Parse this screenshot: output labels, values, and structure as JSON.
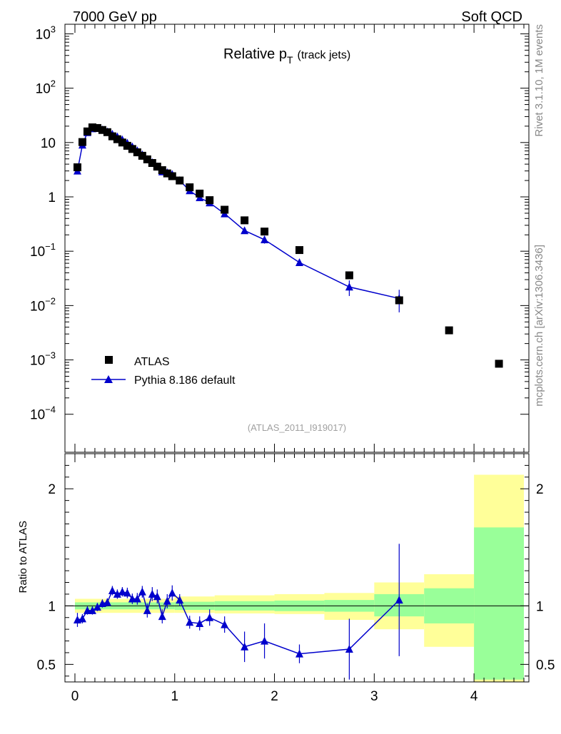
{
  "header": {
    "left": "7000 GeV pp",
    "right": "Soft QCD"
  },
  "side_labels": {
    "top": "Rivet 3.1.10,  1M events",
    "bottom": "mcplots.cern.ch [arXiv:1306.3436]"
  },
  "chart_data": [
    {
      "type": "scatter",
      "panel": "main",
      "title": "Relative p",
      "title_sub": "T",
      "title_suffix": "(track jets)",
      "watermark": "(ATLAS_2011_I919017)",
      "xlabel": "",
      "ylabel": "",
      "yscale": "log",
      "xlim": [
        -0.1,
        4.55
      ],
      "ylim": [
        2e-05,
        1500
      ],
      "y_ticks": [
        {
          "value": 1000,
          "base": "10",
          "exp": "3"
        },
        {
          "value": 100,
          "base": "10",
          "exp": "2"
        },
        {
          "value": 10,
          "base": "10",
          "exp": ""
        },
        {
          "value": 1,
          "base": "1",
          "exp": ""
        },
        {
          "value": 0.1,
          "base": "10",
          "exp": "−1"
        },
        {
          "value": 0.01,
          "base": "10",
          "exp": "−2"
        },
        {
          "value": 0.001,
          "base": "10",
          "exp": "−3"
        },
        {
          "value": 0.0001,
          "base": "10",
          "exp": "−4"
        }
      ],
      "legend": [
        {
          "name": "ATLAS",
          "marker": "square",
          "color": "#000000"
        },
        {
          "name": "Pythia 8.186 default",
          "marker": "triangle",
          "color": "#0000cc"
        }
      ],
      "series": [
        {
          "name": "ATLAS",
          "color": "#000000",
          "points": [
            {
              "x": 0.025,
              "y": 3.5
            },
            {
              "x": 0.075,
              "y": 10.2
            },
            {
              "x": 0.125,
              "y": 16.0
            },
            {
              "x": 0.175,
              "y": 19.0
            },
            {
              "x": 0.225,
              "y": 18.5
            },
            {
              "x": 0.275,
              "y": 17.0
            },
            {
              "x": 0.325,
              "y": 15.5
            },
            {
              "x": 0.375,
              "y": 13.0
            },
            {
              "x": 0.425,
              "y": 11.5
            },
            {
              "x": 0.475,
              "y": 10.0
            },
            {
              "x": 0.525,
              "y": 8.7
            },
            {
              "x": 0.575,
              "y": 7.6
            },
            {
              "x": 0.625,
              "y": 6.6
            },
            {
              "x": 0.675,
              "y": 5.7
            },
            {
              "x": 0.725,
              "y": 4.9
            },
            {
              "x": 0.775,
              "y": 4.2
            },
            {
              "x": 0.825,
              "y": 3.6
            },
            {
              "x": 0.875,
              "y": 3.1
            },
            {
              "x": 0.925,
              "y": 2.7
            },
            {
              "x": 0.975,
              "y": 2.4
            },
            {
              "x": 1.05,
              "y": 2.0
            },
            {
              "x": 1.15,
              "y": 1.5
            },
            {
              "x": 1.25,
              "y": 1.15
            },
            {
              "x": 1.35,
              "y": 0.87
            },
            {
              "x": 1.5,
              "y": 0.58
            },
            {
              "x": 1.7,
              "y": 0.37
            },
            {
              "x": 1.9,
              "y": 0.23
            },
            {
              "x": 2.25,
              "y": 0.105
            },
            {
              "x": 2.75,
              "y": 0.036
            },
            {
              "x": 3.25,
              "y": 0.0125
            },
            {
              "x": 3.75,
              "y": 0.0035
            },
            {
              "x": 4.25,
              "y": 0.00085
            }
          ]
        },
        {
          "name": "Pythia 8.186 default",
          "color": "#0000cc",
          "points": [
            {
              "x": 0.025,
              "y": 3.0,
              "err": 0.25
            },
            {
              "x": 0.075,
              "y": 9.0,
              "err": 0.5
            },
            {
              "x": 0.125,
              "y": 15.3,
              "err": 0.7
            },
            {
              "x": 0.175,
              "y": 18.0,
              "err": 0.8
            },
            {
              "x": 0.225,
              "y": 18.2,
              "err": 0.8
            },
            {
              "x": 0.275,
              "y": 17.2,
              "err": 0.8
            },
            {
              "x": 0.325,
              "y": 15.8,
              "err": 0.7
            },
            {
              "x": 0.375,
              "y": 14.3,
              "err": 0.6
            },
            {
              "x": 0.425,
              "y": 12.8,
              "err": 0.5
            },
            {
              "x": 0.475,
              "y": 11.3,
              "err": 0.5
            },
            {
              "x": 0.525,
              "y": 9.8,
              "err": 0.4
            },
            {
              "x": 0.575,
              "y": 8.4,
              "err": 0.4
            },
            {
              "x": 0.625,
              "y": 7.1,
              "err": 0.3
            },
            {
              "x": 0.675,
              "y": 6.0,
              "err": 0.3
            },
            {
              "x": 0.725,
              "y": 4.9,
              "err": 0.25
            },
            {
              "x": 0.775,
              "y": 4.3,
              "err": 0.2
            },
            {
              "x": 0.825,
              "y": 3.6,
              "err": 0.2
            },
            {
              "x": 0.875,
              "y": 2.9,
              "err": 0.15
            },
            {
              "x": 0.925,
              "y": 2.8,
              "err": 0.15
            },
            {
              "x": 0.975,
              "y": 2.6,
              "err": 0.15
            },
            {
              "x": 1.05,
              "y": 2.0,
              "err": 0.1
            },
            {
              "x": 1.15,
              "y": 1.3,
              "err": 0.08
            },
            {
              "x": 1.25,
              "y": 0.97,
              "err": 0.06
            },
            {
              "x": 1.35,
              "y": 0.78,
              "err": 0.05
            },
            {
              "x": 1.5,
              "y": 0.49,
              "err": 0.04
            },
            {
              "x": 1.7,
              "y": 0.24,
              "err": 0.025
            },
            {
              "x": 1.9,
              "y": 0.163,
              "err": 0.025
            },
            {
              "x": 2.25,
              "y": 0.062,
              "err": 0.008
            },
            {
              "x": 2.75,
              "y": 0.022,
              "err": 0.007
            },
            {
              "x": 3.25,
              "y": 0.0135,
              "err": 0.006
            }
          ]
        }
      ]
    },
    {
      "type": "scatter",
      "panel": "ratio",
      "ylabel": "Ratio to ATLAS",
      "yscale": "linear",
      "xlim": [
        -0.1,
        4.55
      ],
      "ylim": [
        0.35,
        2.3
      ],
      "x_ticks": [
        "0",
        "1",
        "2",
        "3",
        "4"
      ],
      "x_tick_values": [
        0,
        1,
        2,
        3,
        4
      ],
      "y_ticks": [
        "0.5",
        "1",
        "2"
      ],
      "y_tick_values": [
        0.5,
        1,
        2
      ],
      "reference": 1,
      "bands": [
        {
          "x0": 0.0,
          "x1": 1.0,
          "inner": [
            0.97,
            1.03
          ],
          "outer": [
            0.94,
            1.06
          ]
        },
        {
          "x0": 1.0,
          "x1": 1.4,
          "inner": [
            0.965,
            1.035
          ],
          "outer": [
            0.94,
            1.08
          ]
        },
        {
          "x0": 1.4,
          "x1": 2.0,
          "inner": [
            0.96,
            1.04
          ],
          "outer": [
            0.935,
            1.09
          ]
        },
        {
          "x0": 2.0,
          "x1": 2.5,
          "inner": [
            0.955,
            1.045
          ],
          "outer": [
            0.93,
            1.1
          ]
        },
        {
          "x0": 2.5,
          "x1": 3.0,
          "inner": [
            0.95,
            1.05
          ],
          "outer": [
            0.88,
            1.11
          ]
        },
        {
          "x0": 3.0,
          "x1": 3.5,
          "inner": [
            0.91,
            1.1
          ],
          "outer": [
            0.8,
            1.2
          ]
        },
        {
          "x0": 3.5,
          "x1": 4.0,
          "inner": [
            0.85,
            1.15
          ],
          "outer": [
            0.65,
            1.27
          ]
        },
        {
          "x0": 4.0,
          "x1": 4.5,
          "inner": [
            0.37,
            1.67
          ],
          "outer": [
            0.35,
            2.12
          ]
        }
      ],
      "band_colors": {
        "inner": "#99ff99",
        "outer": "#ffff99"
      },
      "series": [
        {
          "name": "Pythia 8.186 default / ATLAS",
          "color": "#0000cc",
          "points": [
            {
              "x": 0.025,
              "y": 0.88,
              "err": 0.06
            },
            {
              "x": 0.075,
              "y": 0.89,
              "err": 0.04
            },
            {
              "x": 0.125,
              "y": 0.96,
              "err": 0.035
            },
            {
              "x": 0.175,
              "y": 0.96,
              "err": 0.035
            },
            {
              "x": 0.225,
              "y": 0.99,
              "err": 0.035
            },
            {
              "x": 0.275,
              "y": 1.02,
              "err": 0.035
            },
            {
              "x": 0.325,
              "y": 1.03,
              "err": 0.035
            },
            {
              "x": 0.375,
              "y": 1.13,
              "err": 0.04
            },
            {
              "x": 0.425,
              "y": 1.1,
              "err": 0.04
            },
            {
              "x": 0.475,
              "y": 1.12,
              "err": 0.04
            },
            {
              "x": 0.525,
              "y": 1.11,
              "err": 0.045
            },
            {
              "x": 0.575,
              "y": 1.06,
              "err": 0.045
            },
            {
              "x": 0.625,
              "y": 1.06,
              "err": 0.05
            },
            {
              "x": 0.675,
              "y": 1.12,
              "err": 0.05
            },
            {
              "x": 0.725,
              "y": 0.96,
              "err": 0.06
            },
            {
              "x": 0.775,
              "y": 1.1,
              "err": 0.06
            },
            {
              "x": 0.825,
              "y": 1.08,
              "err": 0.06
            },
            {
              "x": 0.875,
              "y": 0.91,
              "err": 0.06
            },
            {
              "x": 0.925,
              "y": 1.04,
              "err": 0.06
            },
            {
              "x": 0.975,
              "y": 1.11,
              "err": 0.065
            },
            {
              "x": 1.05,
              "y": 1.05,
              "err": 0.05
            },
            {
              "x": 1.15,
              "y": 0.86,
              "err": 0.055
            },
            {
              "x": 1.25,
              "y": 0.85,
              "err": 0.06
            },
            {
              "x": 1.35,
              "y": 0.9,
              "err": 0.07
            },
            {
              "x": 1.5,
              "y": 0.84,
              "err": 0.07
            },
            {
              "x": 1.7,
              "y": 0.65,
              "err": 0.13
            },
            {
              "x": 1.9,
              "y": 0.7,
              "err": 0.15
            },
            {
              "x": 2.25,
              "y": 0.59,
              "err": 0.08
            },
            {
              "x": 2.75,
              "y": 0.63,
              "err": 0.26
            },
            {
              "x": 3.25,
              "y": 1.05,
              "err": 0.48
            }
          ]
        }
      ]
    }
  ]
}
